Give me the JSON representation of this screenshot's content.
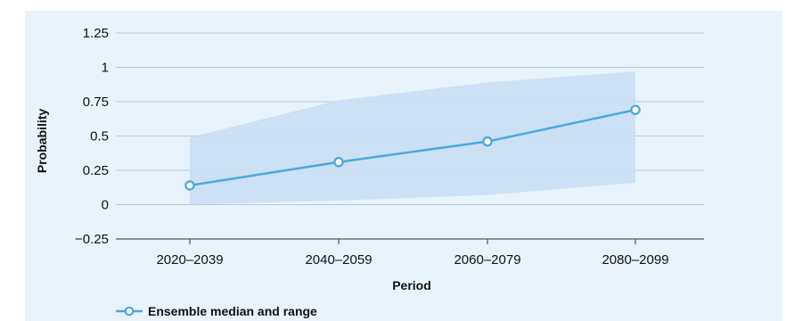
{
  "chart_data": {
    "type": "line",
    "title": "",
    "xlabel": "Period",
    "ylabel": "Probability",
    "categories": [
      "2020–2039",
      "2040–2059",
      "2060–2079",
      "2080–2099"
    ],
    "y_ticks": [
      "1.25",
      "1",
      "0.75",
      "0.5",
      "0.25",
      "0",
      "−0.25"
    ],
    "y_tick_values": [
      1.25,
      1,
      0.75,
      0.5,
      0.25,
      0,
      -0.25
    ],
    "ylim": [
      -0.25,
      1.25
    ],
    "grid": true,
    "legend_position": "bottom-left",
    "series": [
      {
        "name": "Ensemble median and range",
        "median": [
          0.14,
          0.31,
          0.46,
          0.69
        ],
        "range_low": [
          0.0,
          0.03,
          0.07,
          0.16
        ],
        "range_high": [
          0.49,
          0.76,
          0.89,
          0.97
        ],
        "line_color": "#4aa8df",
        "band_color": "#c9dff2"
      }
    ]
  },
  "colors": {
    "panel_background": "#e8f3fc",
    "gridline": "#b9c9d6",
    "axis": "#555555"
  }
}
